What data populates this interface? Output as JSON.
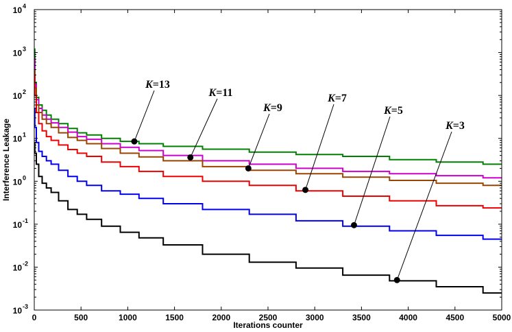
{
  "chart_data": {
    "type": "line",
    "xlabel": "Iterations counter",
    "ylabel": "Interference Leakage",
    "xlim": [
      0,
      5000
    ],
    "ylim": [
      0.001,
      10000
    ],
    "yscale": "log",
    "grid": false,
    "legend": "none",
    "x_ticks": [
      "0",
      "500",
      "1000",
      "1500",
      "2000",
      "2500",
      "3000",
      "3500",
      "4000",
      "4500",
      "5000"
    ],
    "y_ticks": [
      {
        "base": "10",
        "exp": "-3"
      },
      {
        "base": "10",
        "exp": "-2"
      },
      {
        "base": "10",
        "exp": "-1"
      },
      {
        "base": "10",
        "exp": "0"
      },
      {
        "base": "10",
        "exp": "1"
      },
      {
        "base": "10",
        "exp": "2"
      },
      {
        "base": "10",
        "exp": "3"
      },
      {
        "base": "10",
        "exp": "4"
      }
    ],
    "series": [
      {
        "name": "K=13",
        "color": "#008000",
        "x": [
          0,
          10,
          30,
          60,
          100,
          150,
          200,
          300,
          400,
          500,
          600,
          800,
          1000,
          1200,
          1500,
          2000,
          2500,
          3000,
          3500,
          4000,
          4500,
          5000
        ],
        "y": [
          1200,
          200,
          90,
          60,
          45,
          35,
          28,
          22,
          17,
          13.5,
          12,
          10,
          8.5,
          7.5,
          6.5,
          5.6,
          4.8,
          4.2,
          3.8,
          3.2,
          2.8,
          2.5
        ]
      },
      {
        "name": "K=11",
        "color": "#cc00cc",
        "x": [
          0,
          10,
          30,
          60,
          100,
          150,
          200,
          300,
          400,
          500,
          600,
          800,
          1000,
          1200,
          1500,
          2000,
          2500,
          3000,
          3500,
          4000,
          4500,
          5000
        ],
        "y": [
          700,
          180,
          80,
          50,
          35,
          28,
          23,
          18,
          14,
          11,
          9.5,
          7.5,
          6.2,
          5.2,
          4.0,
          3.0,
          2.5,
          2.0,
          1.7,
          1.5,
          1.35,
          1.2
        ]
      },
      {
        "name": "K=9",
        "color": "#994400",
        "x": [
          0,
          10,
          30,
          60,
          100,
          150,
          200,
          300,
          400,
          500,
          600,
          800,
          1000,
          1200,
          1500,
          2000,
          2500,
          3000,
          3500,
          4000,
          4500,
          5000
        ],
        "y": [
          400,
          150,
          60,
          40,
          28,
          22,
          18,
          13.5,
          10.5,
          9.0,
          7.5,
          5.8,
          4.5,
          3.7,
          3.0,
          2.2,
          1.8,
          1.5,
          1.25,
          1.05,
          0.9,
          0.8
        ]
      },
      {
        "name": "K=7",
        "color": "#ee0000",
        "x": [
          0,
          10,
          30,
          60,
          100,
          150,
          200,
          300,
          400,
          500,
          600,
          800,
          1000,
          1200,
          1500,
          2000,
          2500,
          3000,
          3500,
          4000,
          4500,
          5000
        ],
        "y": [
          300,
          100,
          40,
          22,
          15,
          11,
          9,
          7,
          5.5,
          4.5,
          3.8,
          2.8,
          2.2,
          1.7,
          1.3,
          1.0,
          0.8,
          0.6,
          0.45,
          0.35,
          0.27,
          0.24
        ]
      },
      {
        "name": "K=5",
        "color": "#0000ee",
        "x": [
          0,
          10,
          30,
          60,
          100,
          150,
          200,
          300,
          400,
          500,
          600,
          800,
          1000,
          1200,
          1500,
          2000,
          2500,
          3000,
          3500,
          4000,
          4500,
          5000
        ],
        "y": [
          50,
          18,
          8,
          5,
          3.8,
          3.0,
          2.5,
          1.8,
          1.3,
          1.0,
          0.8,
          0.6,
          0.5,
          0.4,
          0.3,
          0.22,
          0.17,
          0.12,
          0.09,
          0.07,
          0.055,
          0.045
        ]
      },
      {
        "name": "K=3",
        "color": "#000000",
        "x": [
          0,
          10,
          30,
          60,
          100,
          150,
          200,
          300,
          400,
          500,
          600,
          800,
          1000,
          1200,
          1500,
          2000,
          2500,
          3000,
          3500,
          4000,
          4500,
          5000
        ],
        "y": [
          8,
          4.5,
          2.5,
          1.3,
          0.9,
          0.7,
          0.55,
          0.35,
          0.22,
          0.17,
          0.13,
          0.09,
          0.065,
          0.048,
          0.033,
          0.02,
          0.013,
          0.0095,
          0.0065,
          0.0048,
          0.0035,
          0.0025
        ]
      }
    ],
    "annotations": [
      {
        "label": "K=13",
        "italic_part": "K",
        "rest": "=13",
        "x": 1070,
        "y": 8.5
      },
      {
        "label": "K=11",
        "italic_part": "K",
        "rest": "=11",
        "x": 1670,
        "y": 3.6
      },
      {
        "label": "K=9",
        "italic_part": "K",
        "rest": "=9",
        "x": 2290,
        "y": 2.0
      },
      {
        "label": "K=7",
        "italic_part": "K",
        "rest": "=7",
        "x": 2900,
        "y": 0.63
      },
      {
        "label": "K=5",
        "italic_part": "K",
        "rest": "=5",
        "x": 3420,
        "y": 0.095
      },
      {
        "label": "K=3",
        "italic_part": "K",
        "rest": "=3",
        "x": 3880,
        "y": 0.005
      }
    ]
  }
}
